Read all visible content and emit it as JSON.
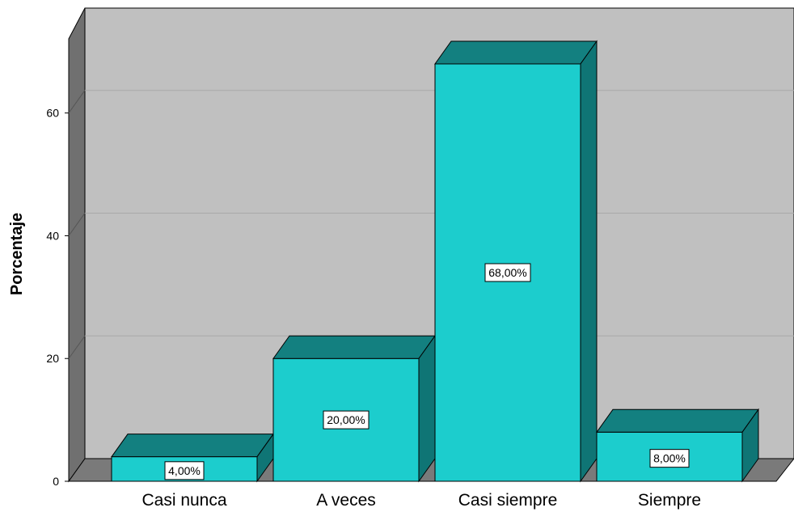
{
  "chart_data": {
    "type": "bar",
    "categories": [
      "Casi nunca",
      "A veces",
      "Casi siempre",
      "Siempre"
    ],
    "values": [
      4,
      20,
      68,
      8
    ],
    "data_labels": [
      "4,00%",
      "20,00%",
      "68,00%",
      "8,00%"
    ],
    "title": "",
    "xlabel": "",
    "ylabel": "Porcentaje",
    "ylim": [
      0,
      70
    ],
    "yticks": [
      0,
      20,
      40,
      60
    ],
    "grid": true,
    "style": "3d",
    "colors": {
      "bar_front": "#1ccdcd",
      "bar_top": "#138080",
      "bar_side": "#0f7575",
      "wall": "#c0c0c0",
      "wall_side": "#707070",
      "floor": "#7a7a7a",
      "gridline": "#a8a8a8",
      "label_bg": "#ffffff"
    }
  }
}
